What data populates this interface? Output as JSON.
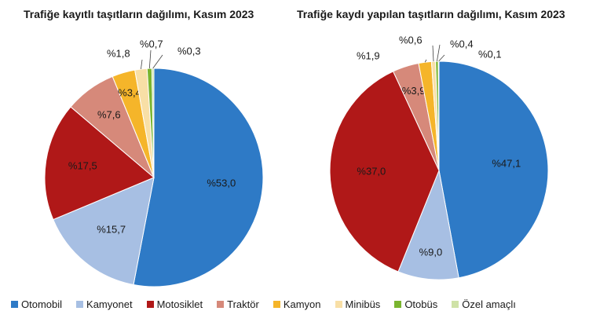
{
  "chart_data": [
    {
      "type": "pie",
      "title": "Trafiğe kayıtlı taşıtların dağılımı, Kasım 2023",
      "categories": [
        "Otomobil",
        "Kamyonet",
        "Motosiklet",
        "Traktör",
        "Kamyon",
        "Minibüs",
        "Otobüs",
        "Özel amaçlı"
      ],
      "values": [
        53.0,
        15.7,
        17.5,
        7.6,
        3.4,
        1.8,
        0.7,
        0.3
      ],
      "labels": [
        "%53,0",
        "%15,7",
        "%17,5",
        "%7,6",
        "%3,4",
        "%1,8",
        "%0,7",
        "%0,3"
      ],
      "legend_position": "bottom"
    },
    {
      "type": "pie",
      "title": "Trafiğe kaydı yapılan taşıtların dağılımı, Kasım 2023",
      "categories": [
        "Otomobil",
        "Kamyonet",
        "Motosiklet",
        "Traktör",
        "Kamyon",
        "Minibüs",
        "Otobüs",
        "Özel amaçlı"
      ],
      "values": [
        47.1,
        9.0,
        37.0,
        3.9,
        1.9,
        0.6,
        0.4,
        0.1
      ],
      "labels": [
        "%47,1",
        "%9,0",
        "%37,0",
        "%3,9",
        "%1,9",
        "%0,6",
        "%0,4",
        "%0,1"
      ],
      "legend_position": "bottom"
    }
  ],
  "legend": {
    "items": [
      {
        "label": "Otomobil",
        "color": "#2e7ac6"
      },
      {
        "label": "Kamyonet",
        "color": "#a7bfe3"
      },
      {
        "label": "Motosiklet",
        "color": "#b01818"
      },
      {
        "label": "Traktör",
        "color": "#d6897a"
      },
      {
        "label": "Kamyon",
        "color": "#f5b52a"
      },
      {
        "label": "Minibüs",
        "color": "#f8dfa6"
      },
      {
        "label": "Otobüs",
        "color": "#7ab52f"
      },
      {
        "label": "Özel amaçlı",
        "color": "#cfe2a7"
      }
    ]
  }
}
